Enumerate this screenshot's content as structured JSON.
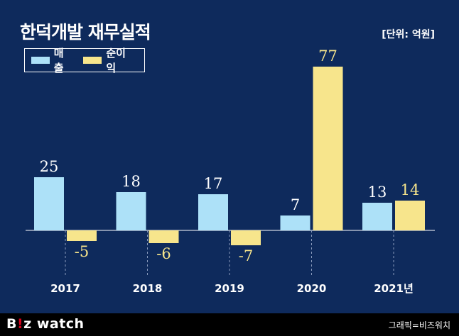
{
  "title": "한덕개발 재무실적",
  "unit": "[단위: 억원]",
  "legend": [
    {
      "label": "매출",
      "color": "#ade1f8"
    },
    {
      "label": "순이익",
      "color": "#f7e58c"
    }
  ],
  "logo": {
    "b": "B",
    "dot": "!",
    "rest": "z watch"
  },
  "credit": "그래픽=비즈워치",
  "colors": {
    "background": "#0e2a5c",
    "revenue": "#ade1f8",
    "net_income": "#f7e58c"
  },
  "chart_data": {
    "type": "bar",
    "title": "한덕개발 재무실적",
    "categories": [
      "2017",
      "2018",
      "2019",
      "2020",
      "2021년"
    ],
    "series": [
      {
        "name": "매출",
        "values": [
          25,
          18,
          17,
          7,
          13
        ]
      },
      {
        "name": "순이익",
        "values": [
          -5,
          -6,
          -7,
          77,
          14
        ]
      }
    ],
    "ylabel": "",
    "xlabel": "",
    "grid": false,
    "legend": "top-left"
  }
}
